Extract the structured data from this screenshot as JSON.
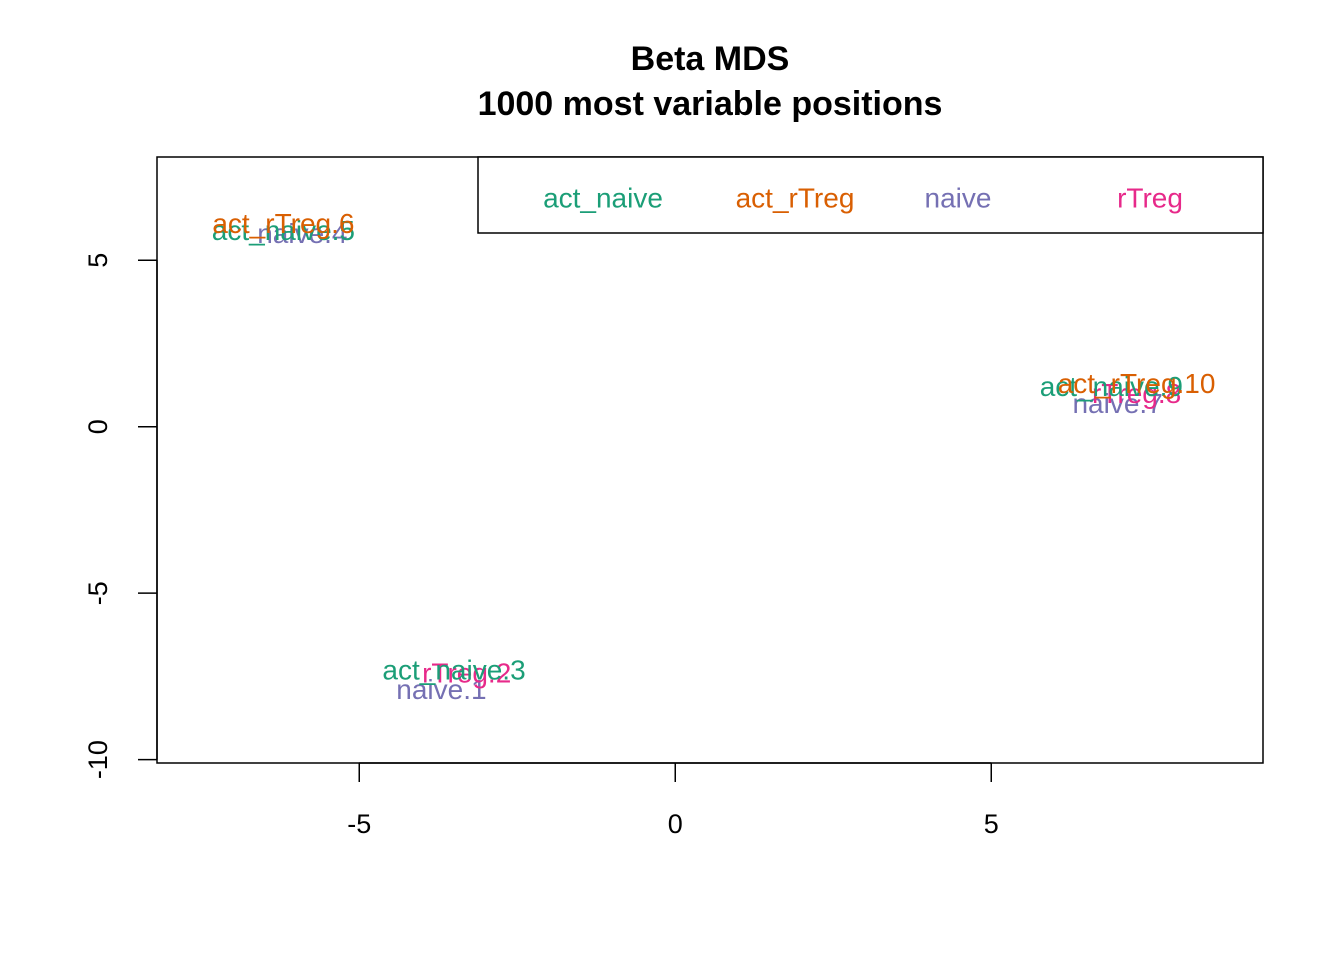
{
  "chart_data": {
    "type": "scatter",
    "title": "Beta MDS",
    "subtitle": "1000 most variable positions",
    "xlabel": "",
    "ylabel": "",
    "xlim": [
      -8.2,
      9.3
    ],
    "ylim": [
      -10.1,
      8.1
    ],
    "x_ticks": [
      -5,
      0,
      5
    ],
    "y_ticks": [
      -10,
      -5,
      0,
      5
    ],
    "point_style": "text labels",
    "groups": {
      "act_naive": "#1B9E77",
      "act_rTreg": "#D95F02",
      "naive": "#7570B3",
      "rTreg": "#E7298A"
    },
    "legend": {
      "placement": "top-right",
      "entries": [
        {
          "label": "act_naive",
          "color": "#1B9E77"
        },
        {
          "label": "act_rTreg",
          "color": "#D95F02"
        },
        {
          "label": "naive",
          "color": "#7570B3"
        },
        {
          "label": "rTreg",
          "color": "#E7298A"
        }
      ]
    },
    "points": [
      {
        "label": "naive.1",
        "group": "naive",
        "x": -3.7,
        "y": -7.9
      },
      {
        "label": "rTreg.2",
        "group": "rTreg",
        "x": -3.3,
        "y": -7.4
      },
      {
        "label": "act_naive.3",
        "group": "act_naive",
        "x": -3.5,
        "y": -7.3
      },
      {
        "label": "naive.4",
        "group": "naive",
        "x": -5.9,
        "y": 5.8
      },
      {
        "label": "act_naive.5",
        "group": "act_naive",
        "x": -6.2,
        "y": 5.9
      },
      {
        "label": "act_rTreg.6",
        "group": "act_rTreg",
        "x": -6.2,
        "y": 6.1
      },
      {
        "label": "naive.7",
        "group": "naive",
        "x": 7.0,
        "y": 0.7
      },
      {
        "label": "rTreg.8",
        "group": "rTreg",
        "x": 7.3,
        "y": 1.0
      },
      {
        "label": "act_naive.9",
        "group": "act_naive",
        "x": 6.9,
        "y": 1.2
      },
      {
        "label": "act_rTreg.10",
        "group": "act_rTreg",
        "x": 7.3,
        "y": 1.3
      }
    ]
  }
}
